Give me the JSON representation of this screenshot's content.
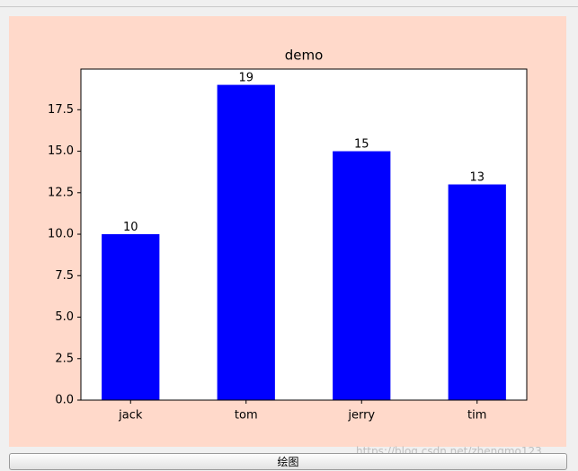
{
  "chart_data": {
    "type": "bar",
    "title": "demo",
    "categories": [
      "jack",
      "tom",
      "jerry",
      "tim"
    ],
    "values": [
      10,
      19,
      15,
      13
    ],
    "color": "#0000ff",
    "ylim": [
      0,
      19.95
    ],
    "yticks": [
      {
        "value": 0,
        "label": "0.0"
      },
      2.5,
      {
        "value": 5,
        "label": "5.0"
      },
      7.5,
      {
        "value": 10,
        "label": "10.0"
      },
      12.5,
      {
        "value": 15,
        "label": "15.0"
      },
      17.5
    ],
    "grid": false
  },
  "button": {
    "label": "绘图"
  },
  "watermark": "https://blog.csdn.net/zhengmo123"
}
